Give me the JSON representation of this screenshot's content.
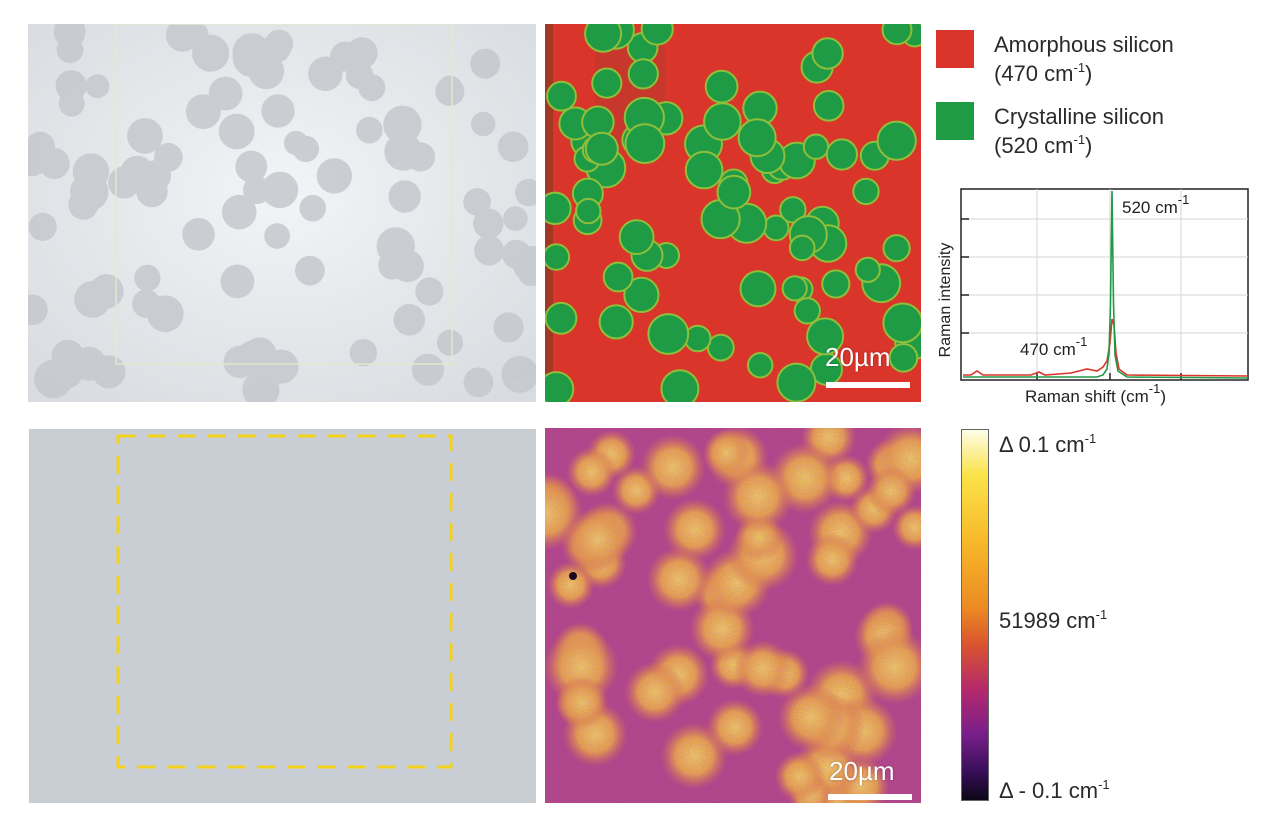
{
  "legend": {
    "items": [
      {
        "name": "Amorphous silicon",
        "wavenumber": "(470 cm",
        "unit_sup": "-1",
        "close": ")",
        "color": "#d9352a"
      },
      {
        "name": "Crystalline silicon",
        "wavenumber": "(520 cm",
        "unit_sup": "-1",
        "close": ")",
        "color": "#1f9a45"
      }
    ]
  },
  "spectrum": {
    "xlabel": "Raman shift (cm",
    "xlabel_sup": "-1",
    "xlabel_close": ")",
    "ylabel": "Raman intensity",
    "peak_high": "520 cm",
    "peak_high_sup": "-1",
    "peak_low": "470 cm",
    "peak_low_sup": "-1",
    "series_colors": {
      "amorphous": "#d9352a",
      "crystalline": "#1f9a45"
    }
  },
  "scale_bars": {
    "top": "20µm",
    "bottom": "20µm"
  },
  "colorbar": {
    "top_label": "Δ 0.1 cm",
    "top_sup": "-1",
    "mid_label": "51989 cm",
    "mid_sup": "-1",
    "bottom_label": "Δ - 0.1 cm",
    "bottom_sup": "-1"
  },
  "colors": {
    "amorphous_red": "#d9352a",
    "crystalline_green": "#1f9a45",
    "roi_dash": "#f3d21c",
    "optical_bg": "#dfe2e5",
    "gray_panel": "#c9ced5"
  }
}
